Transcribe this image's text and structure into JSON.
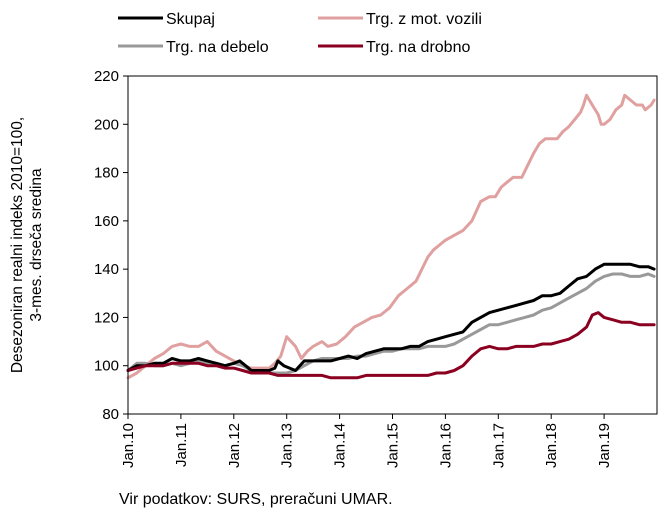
{
  "chart_data": {
    "type": "line",
    "ylabel_lines": [
      "Desezoniran realni indeks 2010=100,",
      "3-mes. drseča sredina"
    ],
    "xlabel": "",
    "ylim": [
      80,
      220
    ],
    "y_ticks": [
      80,
      100,
      120,
      140,
      160,
      180,
      200,
      220
    ],
    "x_ticks": [
      "Jan.10",
      "Jan.11",
      "Jan.12",
      "Jan.13",
      "Jan.14",
      "Jan.15",
      "Jan.16",
      "Jan.17",
      "Jan.18",
      "Jan.19"
    ],
    "x_start": "Jan.10",
    "grid": false,
    "legend_position": "top",
    "series": [
      {
        "name": "Skupaj",
        "color": "#000000",
        "width": 3,
        "points": [
          [
            0,
            98
          ],
          [
            3,
            100
          ],
          [
            6,
            100
          ],
          [
            9,
            101
          ],
          [
            12,
            101
          ],
          [
            15,
            103
          ],
          [
            18,
            102
          ],
          [
            21,
            102
          ],
          [
            24,
            103
          ],
          [
            27,
            102
          ],
          [
            30,
            101
          ],
          [
            33,
            100
          ],
          [
            36,
            101
          ],
          [
            38,
            102
          ],
          [
            40,
            100
          ],
          [
            42,
            98
          ],
          [
            45,
            98
          ],
          [
            48,
            98
          ],
          [
            50,
            99
          ],
          [
            51,
            102
          ],
          [
            53,
            100
          ],
          [
            55,
            99
          ],
          [
            57,
            98
          ],
          [
            60,
            102
          ],
          [
            63,
            102
          ],
          [
            66,
            102
          ],
          [
            69,
            102
          ],
          [
            72,
            103
          ],
          [
            75,
            104
          ],
          [
            78,
            103
          ],
          [
            81,
            105
          ],
          [
            84,
            106
          ],
          [
            87,
            107
          ],
          [
            90,
            107
          ],
          [
            93,
            107
          ],
          [
            96,
            108
          ],
          [
            99,
            108
          ],
          [
            102,
            110
          ],
          [
            105,
            111
          ],
          [
            108,
            112
          ],
          [
            111,
            113
          ],
          [
            114,
            114
          ],
          [
            117,
            118
          ],
          [
            120,
            120
          ],
          [
            123,
            122
          ],
          [
            126,
            123
          ],
          [
            129,
            124
          ],
          [
            132,
            125
          ],
          [
            135,
            126
          ],
          [
            138,
            127
          ],
          [
            141,
            129
          ],
          [
            144,
            129
          ],
          [
            147,
            130
          ],
          [
            150,
            133
          ],
          [
            153,
            136
          ],
          [
            156,
            137
          ],
          [
            159,
            140
          ],
          [
            162,
            142
          ],
          [
            165,
            142
          ],
          [
            168,
            142
          ],
          [
            171,
            142
          ],
          [
            174,
            141
          ],
          [
            177,
            141
          ],
          [
            179,
            140
          ]
        ]
      },
      {
        "name": "Trg. z mot. vozili",
        "color": "#e0a0a0",
        "width": 3,
        "points": [
          [
            0,
            95
          ],
          [
            3,
            97
          ],
          [
            6,
            100
          ],
          [
            9,
            103
          ],
          [
            12,
            105
          ],
          [
            15,
            108
          ],
          [
            18,
            109
          ],
          [
            21,
            108
          ],
          [
            24,
            108
          ],
          [
            27,
            110
          ],
          [
            30,
            106
          ],
          [
            33,
            104
          ],
          [
            36,
            102
          ],
          [
            39,
            100
          ],
          [
            42,
            99
          ],
          [
            45,
            99
          ],
          [
            48,
            99
          ],
          [
            50,
            101
          ],
          [
            52,
            104
          ],
          [
            54,
            112
          ],
          [
            57,
            108
          ],
          [
            59,
            103
          ],
          [
            61,
            106
          ],
          [
            63,
            108
          ],
          [
            66,
            110
          ],
          [
            68,
            108
          ],
          [
            71,
            109
          ],
          [
            74,
            112
          ],
          [
            77,
            116
          ],
          [
            80,
            118
          ],
          [
            83,
            120
          ],
          [
            86,
            121
          ],
          [
            89,
            124
          ],
          [
            92,
            129
          ],
          [
            95,
            132
          ],
          [
            98,
            135
          ],
          [
            100,
            140
          ],
          [
            102,
            145
          ],
          [
            104,
            148
          ],
          [
            106,
            150
          ],
          [
            108,
            152
          ],
          [
            111,
            154
          ],
          [
            114,
            156
          ],
          [
            117,
            160
          ],
          [
            120,
            168
          ],
          [
            123,
            170
          ],
          [
            125,
            170
          ],
          [
            127,
            174
          ],
          [
            129,
            176
          ],
          [
            131,
            178
          ],
          [
            134,
            178
          ],
          [
            136,
            183
          ],
          [
            138,
            188
          ],
          [
            140,
            192
          ],
          [
            142,
            194
          ],
          [
            144,
            194
          ],
          [
            146,
            194
          ],
          [
            148,
            197
          ],
          [
            150,
            199
          ],
          [
            152,
            202
          ],
          [
            154,
            205
          ],
          [
            155,
            208
          ],
          [
            156,
            212
          ],
          [
            158,
            208
          ],
          [
            160,
            204
          ],
          [
            161,
            200
          ],
          [
            162,
            200
          ],
          [
            164,
            202
          ],
          [
            166,
            206
          ],
          [
            168,
            208
          ],
          [
            169,
            212
          ],
          [
            171,
            210
          ],
          [
            173,
            208
          ],
          [
            175,
            208
          ],
          [
            176,
            206
          ],
          [
            178,
            208
          ],
          [
            179,
            210
          ]
        ]
      },
      {
        "name": "Trg. na debelo",
        "color": "#999999",
        "width": 3,
        "points": [
          [
            0,
            98
          ],
          [
            3,
            101
          ],
          [
            6,
            101
          ],
          [
            9,
            100
          ],
          [
            12,
            100
          ],
          [
            15,
            101
          ],
          [
            18,
            100
          ],
          [
            21,
            101
          ],
          [
            24,
            102
          ],
          [
            27,
            101
          ],
          [
            30,
            101
          ],
          [
            33,
            100
          ],
          [
            36,
            101
          ],
          [
            39,
            100
          ],
          [
            42,
            98
          ],
          [
            45,
            98
          ],
          [
            48,
            97
          ],
          [
            51,
            97
          ],
          [
            54,
            97
          ],
          [
            57,
            98
          ],
          [
            60,
            100
          ],
          [
            63,
            102
          ],
          [
            66,
            103
          ],
          [
            69,
            103
          ],
          [
            72,
            103
          ],
          [
            75,
            103
          ],
          [
            78,
            104
          ],
          [
            81,
            104
          ],
          [
            84,
            105
          ],
          [
            87,
            106
          ],
          [
            90,
            106
          ],
          [
            93,
            107
          ],
          [
            96,
            107
          ],
          [
            99,
            107
          ],
          [
            102,
            108
          ],
          [
            105,
            108
          ],
          [
            108,
            108
          ],
          [
            111,
            109
          ],
          [
            114,
            111
          ],
          [
            117,
            113
          ],
          [
            120,
            115
          ],
          [
            123,
            117
          ],
          [
            126,
            117
          ],
          [
            129,
            118
          ],
          [
            132,
            119
          ],
          [
            135,
            120
          ],
          [
            138,
            121
          ],
          [
            141,
            123
          ],
          [
            144,
            124
          ],
          [
            147,
            126
          ],
          [
            150,
            128
          ],
          [
            153,
            130
          ],
          [
            156,
            132
          ],
          [
            159,
            135
          ],
          [
            162,
            137
          ],
          [
            165,
            138
          ],
          [
            168,
            138
          ],
          [
            171,
            137
          ],
          [
            174,
            137
          ],
          [
            177,
            138
          ],
          [
            179,
            137
          ]
        ]
      },
      {
        "name": "Trg. na drobno",
        "color": "#8b0020",
        "width": 3,
        "points": [
          [
            0,
            98
          ],
          [
            3,
            99
          ],
          [
            6,
            100
          ],
          [
            9,
            100
          ],
          [
            12,
            100
          ],
          [
            15,
            101
          ],
          [
            18,
            101
          ],
          [
            21,
            101
          ],
          [
            24,
            101
          ],
          [
            27,
            100
          ],
          [
            30,
            100
          ],
          [
            33,
            99
          ],
          [
            36,
            99
          ],
          [
            39,
            98
          ],
          [
            42,
            97
          ],
          [
            45,
            97
          ],
          [
            48,
            97
          ],
          [
            51,
            96
          ],
          [
            54,
            96
          ],
          [
            57,
            96
          ],
          [
            60,
            96
          ],
          [
            63,
            96
          ],
          [
            66,
            96
          ],
          [
            69,
            95
          ],
          [
            72,
            95
          ],
          [
            75,
            95
          ],
          [
            78,
            95
          ],
          [
            81,
            96
          ],
          [
            84,
            96
          ],
          [
            87,
            96
          ],
          [
            90,
            96
          ],
          [
            93,
            96
          ],
          [
            96,
            96
          ],
          [
            99,
            96
          ],
          [
            102,
            96
          ],
          [
            105,
            97
          ],
          [
            108,
            97
          ],
          [
            111,
            98
          ],
          [
            114,
            100
          ],
          [
            117,
            104
          ],
          [
            120,
            107
          ],
          [
            123,
            108
          ],
          [
            126,
            107
          ],
          [
            129,
            107
          ],
          [
            132,
            108
          ],
          [
            135,
            108
          ],
          [
            138,
            108
          ],
          [
            141,
            109
          ],
          [
            144,
            109
          ],
          [
            147,
            110
          ],
          [
            150,
            111
          ],
          [
            153,
            113
          ],
          [
            156,
            116
          ],
          [
            158,
            121
          ],
          [
            160,
            122
          ],
          [
            162,
            120
          ],
          [
            165,
            119
          ],
          [
            168,
            118
          ],
          [
            171,
            118
          ],
          [
            174,
            117
          ],
          [
            177,
            117
          ],
          [
            179,
            117
          ]
        ]
      }
    ]
  },
  "source": "Vir podatkov: SURS, preračuni UMAR."
}
